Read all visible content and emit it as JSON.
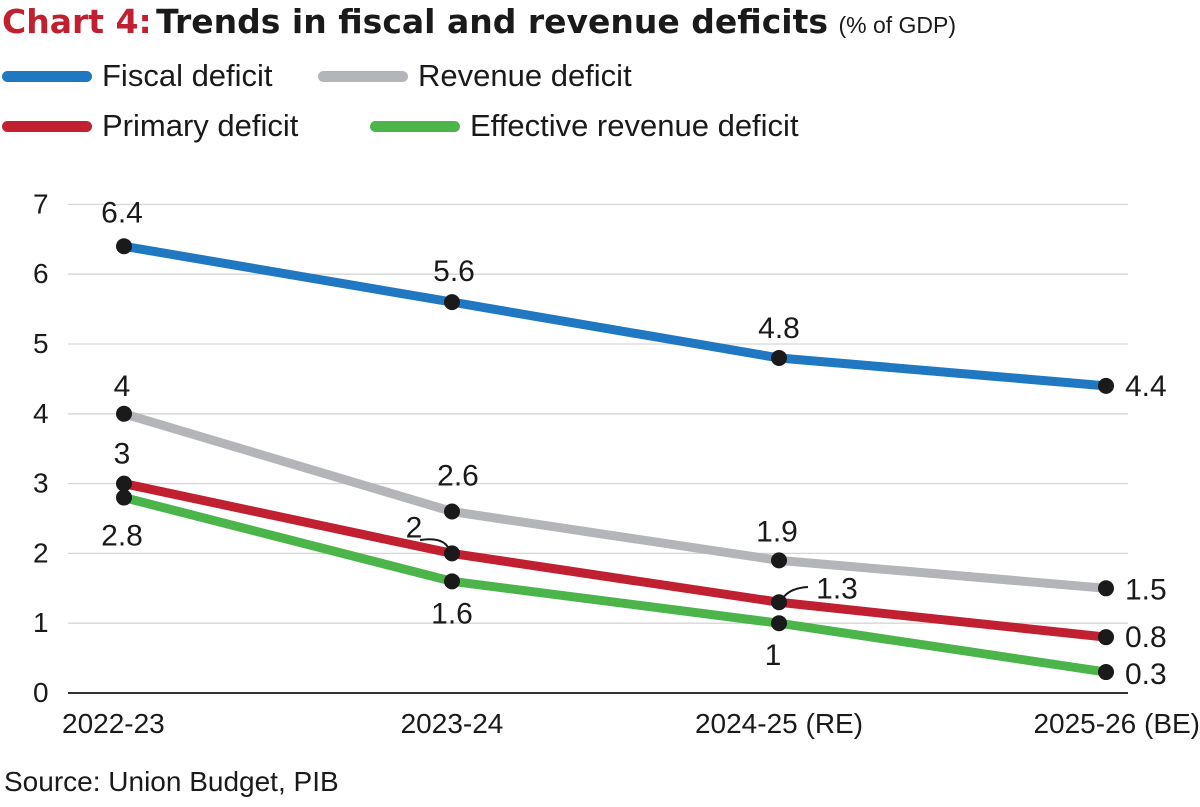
{
  "title": {
    "prefix": "Chart 4:",
    "main": "Trends in fiscal and revenue deficits",
    "sub": "(% of GDP)"
  },
  "source": "Source: Union Budget, PIB",
  "chart_data": {
    "type": "line",
    "categories": [
      "2022-23",
      "2023-24",
      "2024-25 (RE)",
      "2025-26 (BE)"
    ],
    "ylim": [
      0,
      7
    ],
    "yticks": [
      "0",
      "1",
      "2",
      "3",
      "4",
      "5",
      "6",
      "7"
    ],
    "grid": true,
    "legend_position": "top-left",
    "series": [
      {
        "name": "Fiscal deficit",
        "color": "#1f78c1",
        "values": [
          6.4,
          5.6,
          4.8,
          4.4
        ],
        "labels": [
          "6.4",
          "5.6",
          "4.8",
          "4.4"
        ]
      },
      {
        "name": "Revenue deficit",
        "color": "#b4b5b8",
        "values": [
          4.0,
          2.6,
          1.9,
          1.5
        ],
        "labels": [
          "4",
          "2.6",
          "1.9",
          "1.5"
        ]
      },
      {
        "name": "Primary deficit",
        "color": "#c0202f",
        "values": [
          3.0,
          2.0,
          1.3,
          0.8
        ],
        "labels": [
          "3",
          "2",
          "1.3",
          "0.8"
        ]
      },
      {
        "name": "Effective revenue deficit",
        "color": "#4bb54a",
        "values": [
          2.8,
          1.6,
          1.0,
          0.3
        ],
        "labels": [
          "2.8",
          "1.6",
          "1",
          "0.3"
        ]
      }
    ]
  }
}
